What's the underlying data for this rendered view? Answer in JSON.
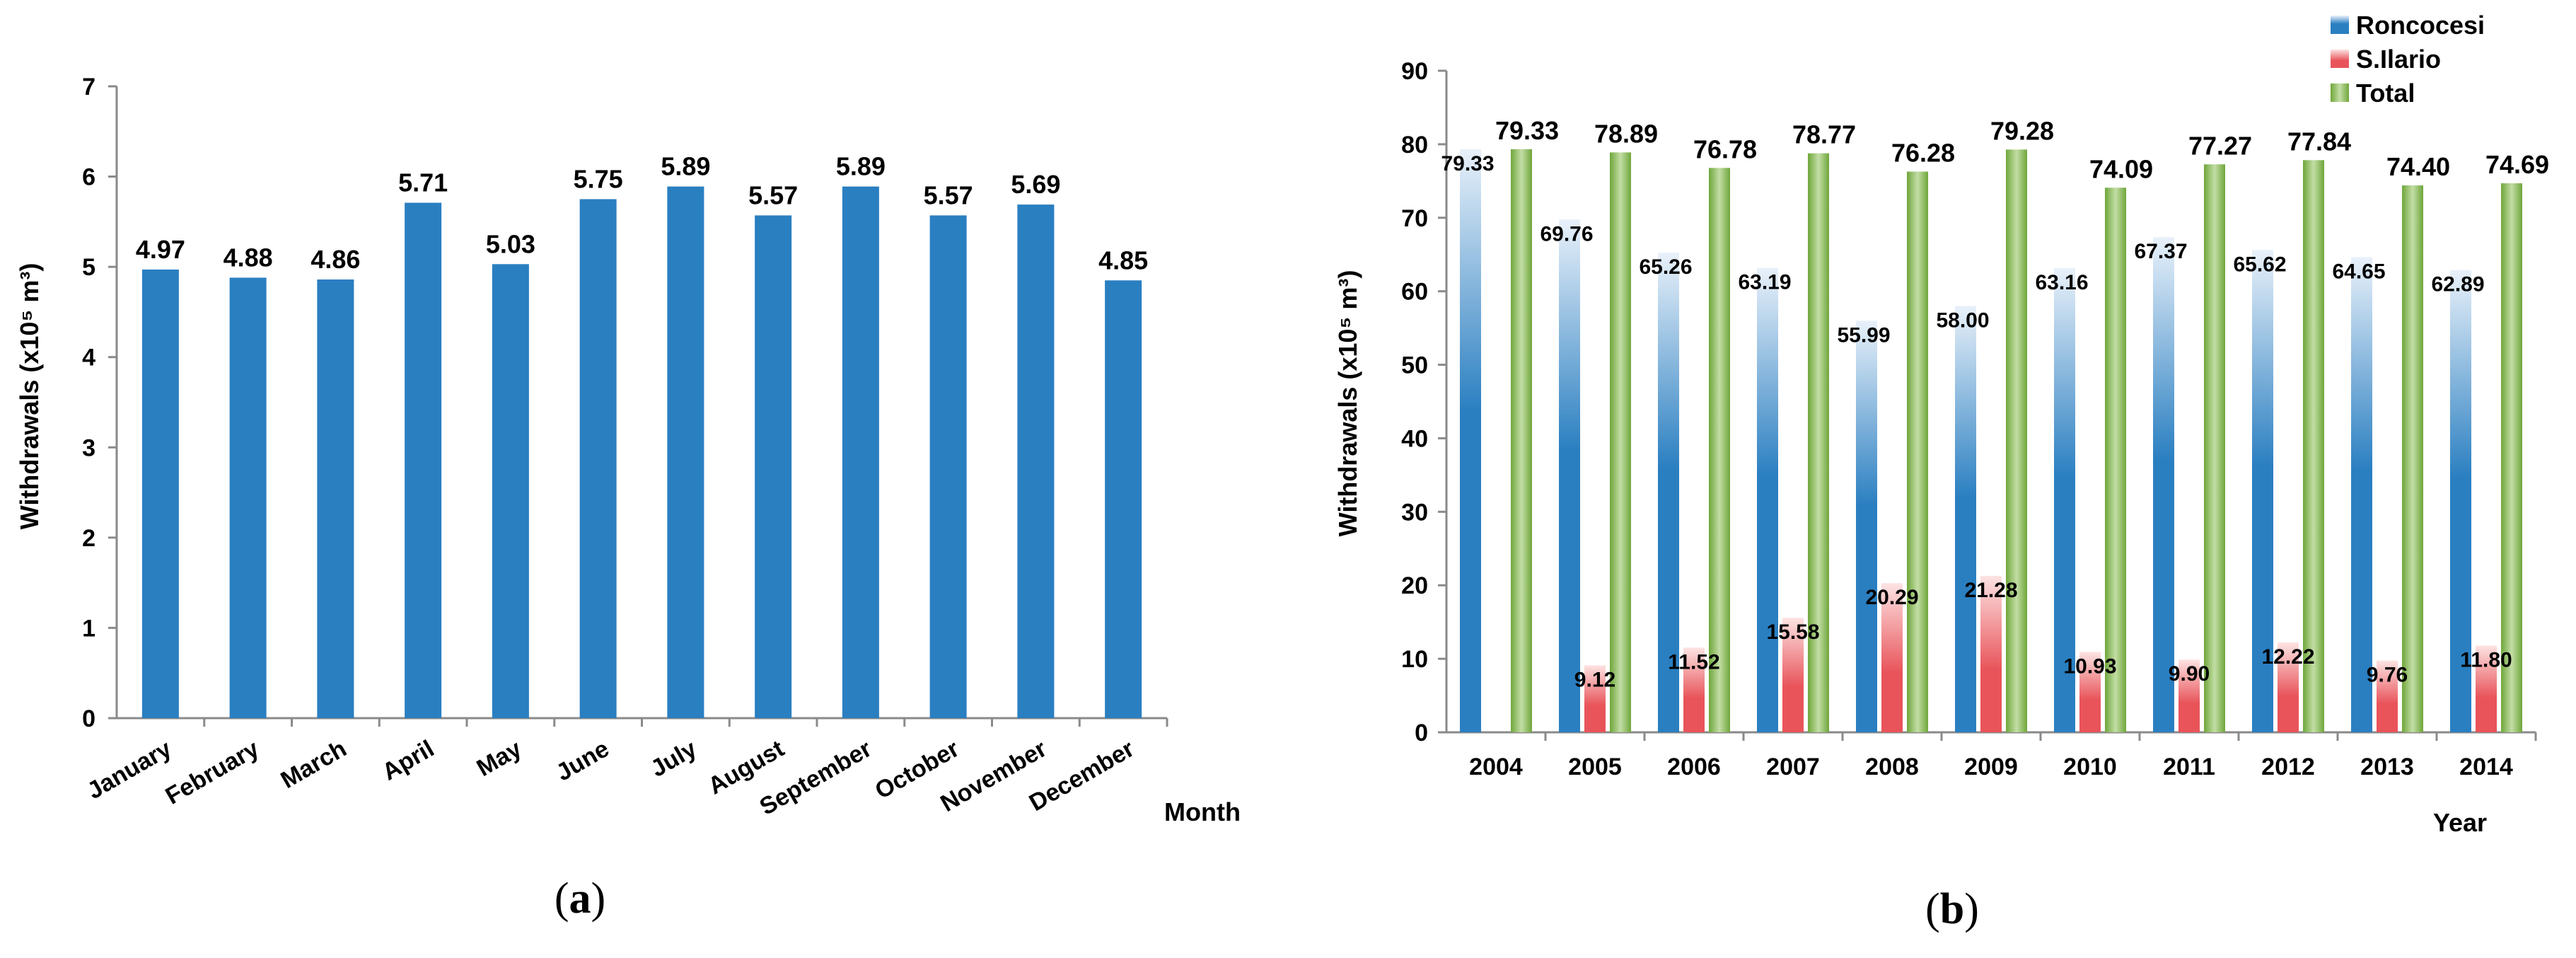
{
  "chart_data": [
    {
      "type": "bar",
      "panel_label": "a",
      "categories": [
        "January",
        "February",
        "March",
        "April",
        "May",
        "June",
        "July",
        "August",
        "September",
        "October",
        "November",
        "December"
      ],
      "values": [
        4.97,
        4.88,
        4.86,
        5.71,
        5.03,
        5.75,
        5.89,
        5.57,
        5.89,
        5.57,
        5.69,
        4.85
      ],
      "data_labels": [
        "4.97",
        "4.88",
        "4.86",
        "5.71",
        "5.03",
        "5.75",
        "5.89",
        "5.57",
        "5.89",
        "5.57",
        "5.69",
        "4.85"
      ],
      "ylabel": "Withdrawals (x10⁵ m³)",
      "xlabel": "Month",
      "ylim": [
        0,
        7
      ],
      "yticks": [
        "0",
        "1",
        "2",
        "3",
        "4",
        "5",
        "6",
        "7"
      ],
      "color": "#2a7fc1"
    },
    {
      "type": "bar",
      "panel_label": "b",
      "categories": [
        "2004",
        "2005",
        "2006",
        "2007",
        "2008",
        "2009",
        "2010",
        "2011",
        "2012",
        "2013",
        "2014"
      ],
      "series": [
        {
          "name": "Roncocesi",
          "color": "#2a7fc1",
          "values": [
            79.33,
            69.76,
            65.26,
            63.19,
            55.99,
            58.0,
            63.16,
            67.37,
            65.62,
            64.65,
            62.89
          ],
          "labels": [
            "79.33",
            "69.76",
            "65.26",
            "63.19",
            "55.99",
            "58.00",
            "63.16",
            "67.37",
            "65.62",
            "64.65",
            "62.89"
          ]
        },
        {
          "name": "S.Ilario",
          "color": "#e8545a",
          "values": [
            0,
            9.12,
            11.52,
            15.58,
            20.29,
            21.28,
            10.93,
            9.9,
            12.22,
            9.76,
            11.8
          ],
          "labels": [
            "",
            "9.12",
            "11.52",
            "15.58",
            "20.29",
            "21.28",
            "10.93",
            "9.90",
            "12.22",
            "9.76",
            "11.80"
          ]
        },
        {
          "name": "Total",
          "color": "#6fa63a",
          "values": [
            79.33,
            78.89,
            76.78,
            78.77,
            76.28,
            79.28,
            74.09,
            77.27,
            77.84,
            74.4,
            74.69
          ],
          "labels": [
            "79.33",
            "78.89",
            "76.78",
            "78.77",
            "76.28",
            "79.28",
            "74.09",
            "77.27",
            "77.84",
            "74.40",
            "74.69"
          ]
        }
      ],
      "ylabel": "Withdrawals (x10⁵ m³)",
      "xlabel": "Year",
      "ylim": [
        0,
        90
      ],
      "yticks": [
        "0",
        "10",
        "20",
        "30",
        "40",
        "50",
        "60",
        "70",
        "80",
        "90"
      ],
      "legend_position": "top-right"
    }
  ]
}
